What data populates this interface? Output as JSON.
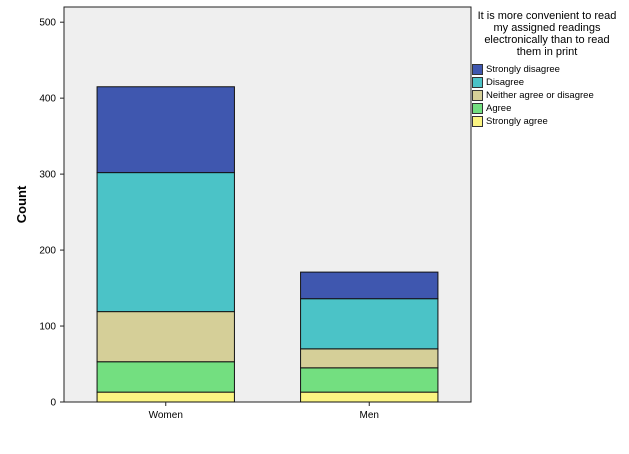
{
  "chart_data": {
    "type": "bar",
    "stacked": true,
    "categories": [
      "Women",
      "Men"
    ],
    "ylabel": "Count",
    "ylim": [
      0,
      520
    ],
    "yticks": [
      0,
      100,
      200,
      300,
      400,
      500
    ],
    "plot_background": "#efefef",
    "legend": {
      "title": "It is more convenient to read my assigned readings electronically than to read them in print",
      "placement": "right"
    },
    "series": [
      {
        "name": "Strongly agree",
        "values": [
          13,
          13
        ],
        "color": "#fbf582"
      },
      {
        "name": "Agree",
        "values": [
          40,
          32
        ],
        "color": "#73df80"
      },
      {
        "name": "Neither agree or disagree",
        "values": [
          66,
          25
        ],
        "color": "#d5cf98"
      },
      {
        "name": "Disagree",
        "values": [
          183,
          66
        ],
        "color": "#4bc3c7"
      },
      {
        "name": "Strongly disagree",
        "values": [
          113,
          35
        ],
        "color": "#3f57af"
      }
    ]
  }
}
